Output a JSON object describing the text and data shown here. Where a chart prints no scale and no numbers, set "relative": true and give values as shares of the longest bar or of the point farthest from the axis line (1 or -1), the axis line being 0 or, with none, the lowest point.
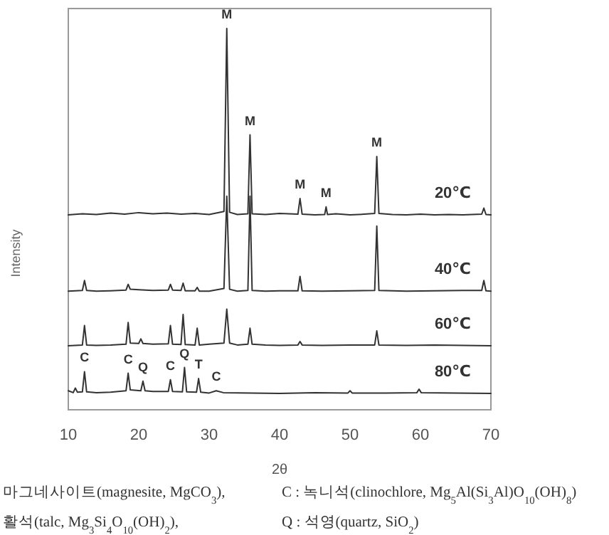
{
  "chart_data": {
    "type": "line",
    "relative": true,
    "xlabel": "2θ",
    "ylabel": "Intensity",
    "xlim": [
      10,
      70
    ],
    "xticks": [
      10,
      20,
      30,
      40,
      50,
      60,
      70
    ],
    "series": [
      {
        "name": "20℃",
        "color": "#333333",
        "x": [
          10,
          12,
          14,
          16,
          18,
          20,
          22,
          24,
          26,
          28,
          30,
          32.1,
          32.5,
          32.9,
          34,
          35.5,
          35.8,
          36.1,
          38,
          40,
          42.6,
          42.9,
          43.2,
          45,
          46.4,
          46.6,
          46.8,
          48,
          50,
          52,
          53.5,
          53.8,
          54.1,
          56,
          58,
          60,
          62,
          64,
          66,
          68.7,
          69,
          69.3,
          70
        ],
        "values": [
          0.511,
          0.514,
          0.512,
          0.516,
          0.513,
          0.517,
          0.514,
          0.516,
          0.513,
          0.515,
          0.512,
          0.52,
          1.0,
          0.518,
          0.512,
          0.514,
          0.721,
          0.514,
          0.512,
          0.515,
          0.513,
          0.554,
          0.513,
          0.511,
          0.512,
          0.532,
          0.512,
          0.514,
          0.511,
          0.513,
          0.515,
          0.664,
          0.515,
          0.512,
          0.511,
          0.513,
          0.511,
          0.512,
          0.511,
          0.513,
          0.529,
          0.512,
          0.511
        ]
      },
      {
        "name": "40℃",
        "color": "#333333",
        "x": [
          10,
          12,
          12.3,
          12.6,
          14,
          16,
          18.2,
          18.5,
          18.8,
          20,
          22,
          24.2,
          24.5,
          24.8,
          26,
          26.3,
          26.6,
          28,
          28.3,
          28.6,
          30,
          32.1,
          32.5,
          32.9,
          34,
          35.5,
          35.8,
          36.1,
          38,
          40,
          42.6,
          42.9,
          43.2,
          46,
          50,
          53.5,
          53.8,
          54.1,
          58,
          62,
          66,
          68.7,
          69,
          69.3,
          70
        ],
        "values": [
          0.311,
          0.313,
          0.339,
          0.313,
          0.311,
          0.312,
          0.314,
          0.329,
          0.316,
          0.315,
          0.313,
          0.314,
          0.329,
          0.314,
          0.313,
          0.332,
          0.312,
          0.312,
          0.321,
          0.311,
          0.311,
          0.318,
          0.56,
          0.316,
          0.311,
          0.313,
          0.56,
          0.313,
          0.311,
          0.312,
          0.312,
          0.35,
          0.312,
          0.311,
          0.312,
          0.313,
          0.482,
          0.313,
          0.311,
          0.312,
          0.313,
          0.313,
          0.339,
          0.312,
          0.311
        ]
      },
      {
        "name": "60℃",
        "color": "#333333",
        "x": [
          10,
          12,
          12.3,
          12.6,
          14,
          16,
          18.2,
          18.5,
          18.8,
          20,
          20.3,
          20.6,
          22,
          24.2,
          24.5,
          24.8,
          26,
          26.3,
          26.6,
          28,
          28.3,
          28.6,
          30,
          32.1,
          32.5,
          32.9,
          34,
          35.5,
          35.8,
          36.1,
          38,
          40,
          42.6,
          42.9,
          43.2,
          46,
          50,
          53.5,
          53.8,
          54.1,
          58,
          62,
          66,
          70
        ],
        "values": [
          0.168,
          0.17,
          0.221,
          0.17,
          0.169,
          0.17,
          0.172,
          0.229,
          0.175,
          0.174,
          0.186,
          0.174,
          0.172,
          0.173,
          0.221,
          0.172,
          0.171,
          0.25,
          0.171,
          0.17,
          0.214,
          0.17,
          0.172,
          0.175,
          0.264,
          0.175,
          0.17,
          0.172,
          0.214,
          0.172,
          0.17,
          0.169,
          0.17,
          0.179,
          0.17,
          0.169,
          0.17,
          0.17,
          0.207,
          0.17,
          0.169,
          0.17,
          0.169,
          0.168
        ]
      },
      {
        "name": "80℃",
        "color": "#333333",
        "x": [
          10,
          10.7,
          11,
          11.3,
          12,
          12.3,
          12.6,
          14,
          16,
          18.2,
          18.5,
          18.8,
          20.3,
          20.6,
          20.9,
          22,
          24.2,
          24.5,
          24.8,
          26.2,
          26.5,
          26.8,
          28.2,
          28.5,
          28.8,
          30,
          31,
          32,
          36,
          40,
          45,
          49.7,
          50,
          50.3,
          55,
          59.5,
          59.8,
          60.1,
          65,
          70
        ],
        "values": [
          0.05,
          0.045,
          0.057,
          0.046,
          0.047,
          0.1,
          0.047,
          0.045,
          0.046,
          0.05,
          0.096,
          0.052,
          0.05,
          0.075,
          0.05,
          0.048,
          0.048,
          0.079,
          0.048,
          0.047,
          0.111,
          0.047,
          0.046,
          0.082,
          0.046,
          0.044,
          0.05,
          0.045,
          0.044,
          0.043,
          0.045,
          0.044,
          0.05,
          0.044,
          0.044,
          0.045,
          0.054,
          0.045,
          0.044,
          0.043
        ]
      }
    ],
    "annotations": [
      {
        "text": "M",
        "x": 32.5,
        "y": 1.0
      },
      {
        "text": "M",
        "x": 35.8,
        "y": 0.721
      },
      {
        "text": "M",
        "x": 42.9,
        "y": 0.554
      },
      {
        "text": "M",
        "x": 46.6,
        "y": 0.532
      },
      {
        "text": "M",
        "x": 53.8,
        "y": 0.664
      },
      {
        "text": "C",
        "x": 12.3,
        "y": 0.1
      },
      {
        "text": "C",
        "x": 18.5,
        "y": 0.096
      },
      {
        "text": "Q",
        "x": 20.6,
        "y": 0.075
      },
      {
        "text": "C",
        "x": 24.5,
        "y": 0.079
      },
      {
        "text": "Q",
        "x": 26.5,
        "y": 0.111
      },
      {
        "text": "T",
        "x": 28.5,
        "y": 0.082
      },
      {
        "text": "C",
        "x": 31,
        "y": 0.05
      },
      "마그네사이트(magnesite, MgCO$_{3}$),",
      "C : 녹니석(clinochlore, Mg$_{5}$Al(Si$_{3}$Al)O$_{10}$(OH)$_{8}$)",
      "활석(talc, Mg$_{3}$Si$_{4}$O$_{10}$(OH)$_{2}$),",
      "Q : 석영(quartz, SiO$_{2}$)"
    ]
  }
}
